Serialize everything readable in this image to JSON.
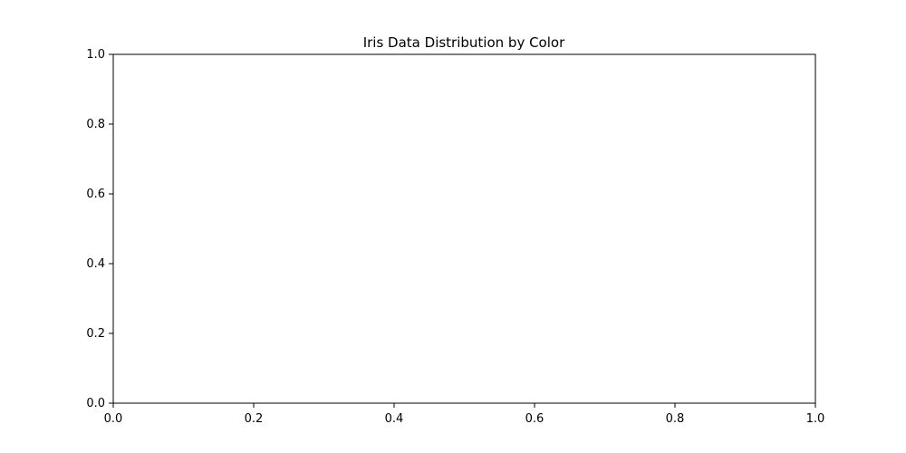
{
  "chart_data": {
    "type": "bar",
    "title": "Iris Data Distribution by Color",
    "xlabel": "",
    "ylabel": "",
    "xlim": [
      0.0,
      1.0
    ],
    "ylim": [
      0.0,
      1.0
    ],
    "x_ticks": [
      "0.0",
      "0.2",
      "0.4",
      "0.6",
      "0.8",
      "1.0"
    ],
    "y_ticks": [
      "0.0",
      "0.2",
      "0.4",
      "0.6",
      "0.8",
      "1.0"
    ],
    "grid": false,
    "legend": "none",
    "series": [],
    "colors": {
      "axis": "#000000",
      "background": "#ffffff"
    }
  }
}
